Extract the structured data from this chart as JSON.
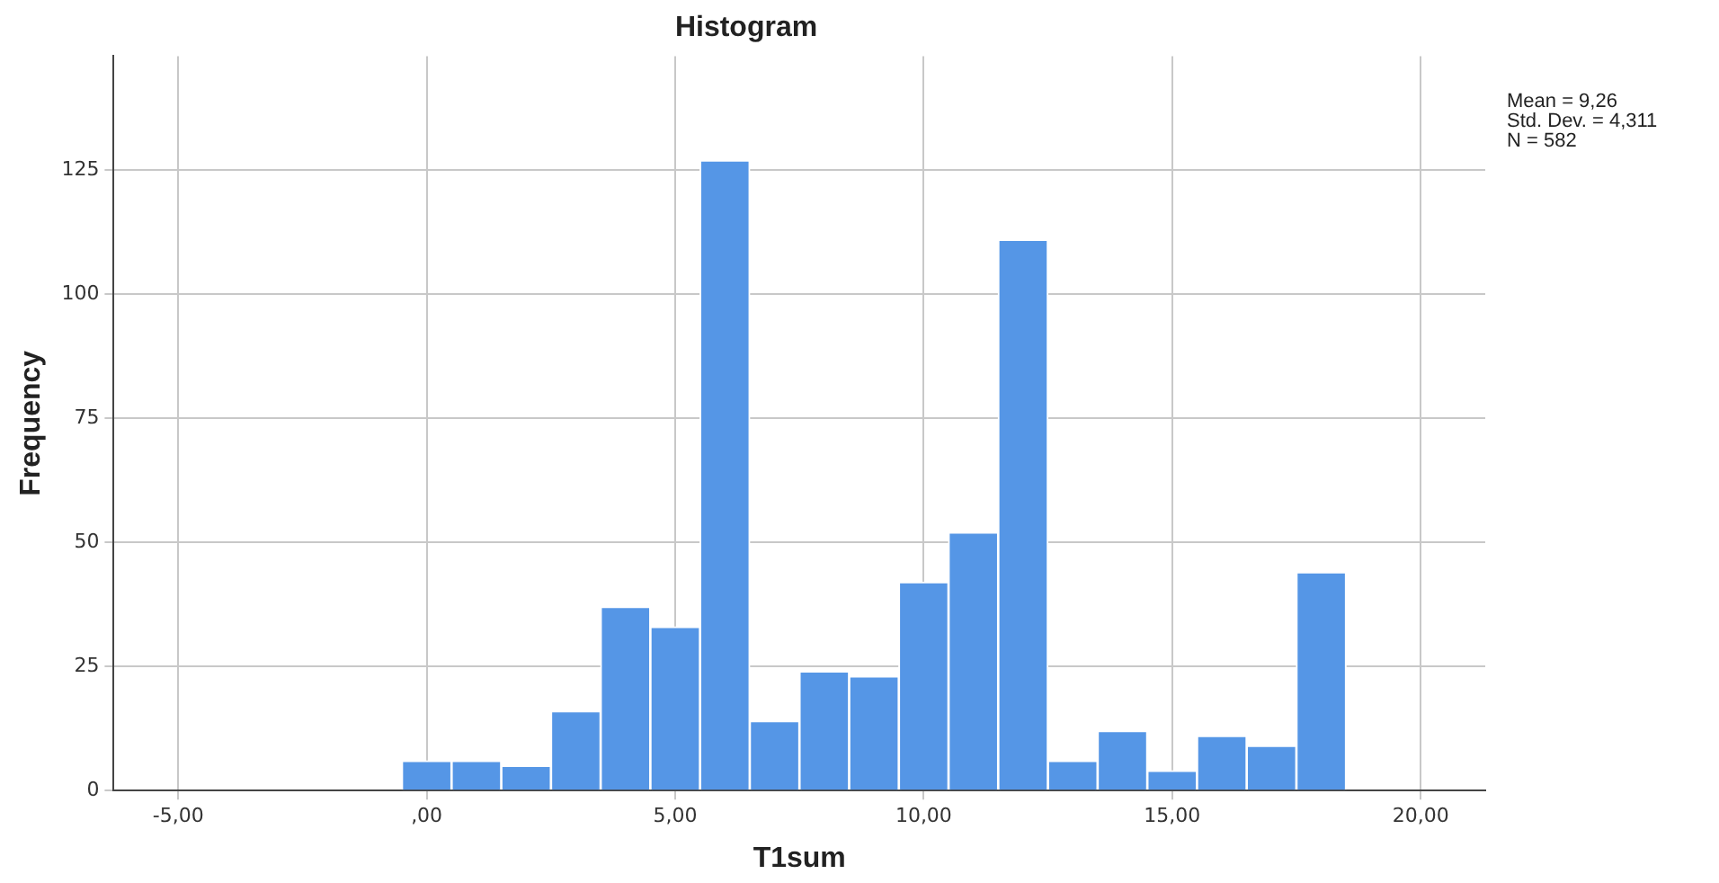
{
  "chart_data": {
    "type": "histogram",
    "title": "Histogram",
    "xlabel": "T1sum",
    "ylabel": "Frequency",
    "bins": [
      -0.5,
      0.5,
      1.5,
      2.5,
      3.5,
      4.5,
      5.5,
      6.5,
      7.5,
      8.5,
      9.5,
      10.5,
      11.5,
      12.5,
      13.5,
      14.5,
      15.5,
      16.5,
      17.5,
      18.5
    ],
    "values": [
      6,
      6,
      5,
      16,
      37,
      33,
      127,
      14,
      24,
      23,
      42,
      52,
      111,
      6,
      12,
      4,
      11,
      9,
      44
    ],
    "color": "#5596e6",
    "xlim": [
      -6.3,
      21.3
    ],
    "xticks": [
      {
        "value": -5,
        "label": "-5,00"
      },
      {
        "value": 0,
        "label": ",00"
      },
      {
        "value": 5,
        "label": "5,00"
      },
      {
        "value": 10,
        "label": "10,00"
      },
      {
        "value": 15,
        "label": "15,00"
      },
      {
        "value": 20,
        "label": "20,00"
      }
    ],
    "ylim": [
      0,
      148
    ],
    "yticks": [
      0,
      25,
      50,
      75,
      100,
      125
    ],
    "grid": true,
    "annotations": [
      "Mean = 9,26",
      "Std. Dev. = 4,311",
      "N = 582"
    ]
  }
}
